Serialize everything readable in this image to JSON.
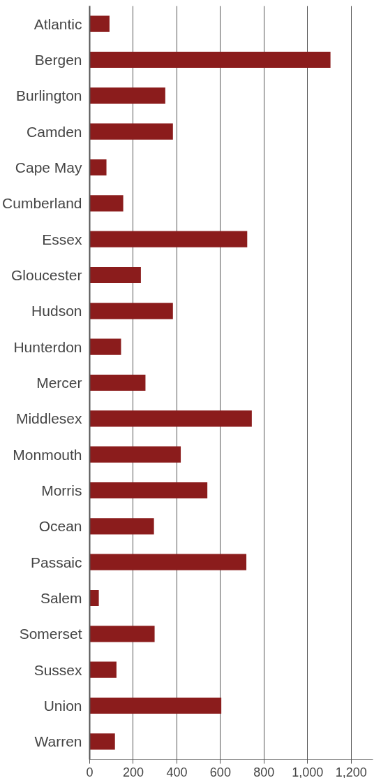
{
  "chart_data": {
    "type": "bar",
    "orientation": "horizontal",
    "categories": [
      "Atlantic",
      "Bergen",
      "Burlington",
      "Camden",
      "Cape May",
      "Cumberland",
      "Essex",
      "Gloucester",
      "Hudson",
      "Hunterdon",
      "Mercer",
      "Middlesex",
      "Monmouth",
      "Morris",
      "Ocean",
      "Passaic",
      "Salem",
      "Somerset",
      "Sussex",
      "Union",
      "Warren"
    ],
    "values": [
      91,
      1105,
      347,
      382,
      77,
      154,
      723,
      235,
      382,
      144,
      256,
      744,
      418,
      540,
      295,
      719,
      42,
      298,
      123,
      604,
      116
    ],
    "color": "#8b1c1c",
    "xlim": [
      0,
      1300
    ],
    "xticks": [
      0,
      200,
      400,
      600,
      800,
      {
        "value": 1000,
        "label": "1,000"
      },
      {
        "value": 1200,
        "label": "1,200"
      }
    ],
    "grid": "x"
  }
}
